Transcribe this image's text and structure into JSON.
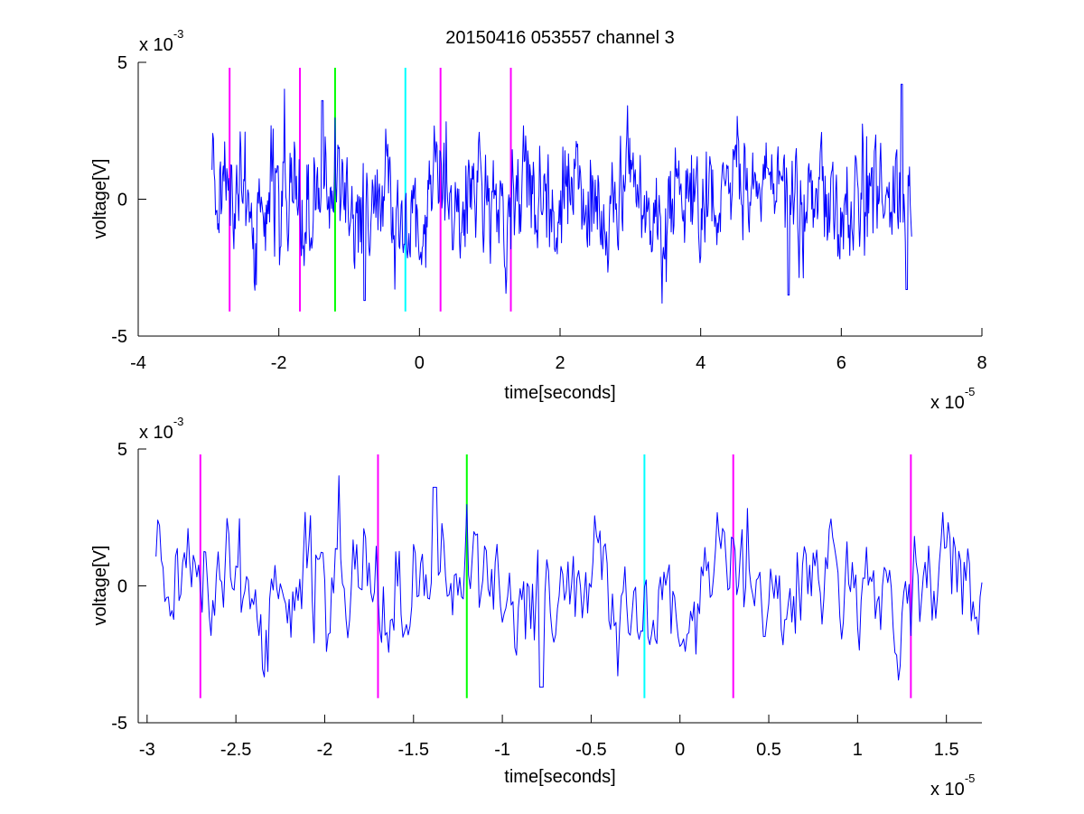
{
  "chart_data": [
    {
      "type": "line",
      "title": "20150416 053557 channel 3",
      "xlabel": "time[seconds]",
      "ylabel": "voltage[V]",
      "xlim": [
        -4,
        8
      ],
      "ylim": [
        -5,
        5
      ],
      "x_scale_label": "x 10",
      "x_scale_exponent": "-5",
      "y_scale_label": "x 10",
      "y_scale_exponent": "-3",
      "xticks": [
        -4,
        -2,
        0,
        2,
        4,
        6,
        8
      ],
      "xtick_labels": [
        "-4",
        "-2",
        "0",
        "2",
        "4",
        "6",
        "8"
      ],
      "yticks": [
        -5,
        0,
        5
      ],
      "ytick_labels": [
        "-5",
        "0",
        "5"
      ],
      "grid": false,
      "series_color": "#0000ff",
      "series_x_range": [
        -2.95,
        7.0
      ],
      "markers": [
        {
          "x": -2.7,
          "color": "#ff00ff"
        },
        {
          "x": -1.7,
          "color": "#ff00ff"
        },
        {
          "x": -1.2,
          "color": "#00ff00"
        },
        {
          "x": -0.2,
          "color": "#00ffff"
        },
        {
          "x": 0.3,
          "color": "#ff00ff"
        },
        {
          "x": 1.3,
          "color": "#ff00ff"
        }
      ],
      "marker_range": [
        -4.1,
        4.8
      ]
    },
    {
      "type": "line",
      "xlabel": "time[seconds]",
      "ylabel": "voltage[V]",
      "xlim": [
        -3.05,
        1.7
      ],
      "ylim": [
        -5,
        5
      ],
      "x_scale_label": "x 10",
      "x_scale_exponent": "-5",
      "y_scale_label": "x 10",
      "y_scale_exponent": "-3",
      "xticks": [
        -3,
        -2.5,
        -2,
        -1.5,
        -1,
        -0.5,
        0,
        0.5,
        1,
        1.5
      ],
      "xtick_labels": [
        "-3",
        "-2.5",
        "-2",
        "-1.5",
        "-1",
        "-0.5",
        "0",
        "0.5",
        "1",
        "1.5"
      ],
      "yticks": [
        -5,
        0,
        5
      ],
      "ytick_labels": [
        "-5",
        "0",
        "5"
      ],
      "grid": false,
      "series_color": "#0000ff",
      "series_x_range": [
        -2.95,
        1.7
      ],
      "markers": [
        {
          "x": -2.7,
          "color": "#ff00ff"
        },
        {
          "x": -1.7,
          "color": "#ff00ff"
        },
        {
          "x": -1.2,
          "color": "#00ff00"
        },
        {
          "x": -0.2,
          "color": "#00ffff"
        },
        {
          "x": 0.3,
          "color": "#ff00ff"
        },
        {
          "x": 1.3,
          "color": "#ff00ff"
        }
      ],
      "marker_range": [
        -4.1,
        4.8
      ]
    }
  ]
}
